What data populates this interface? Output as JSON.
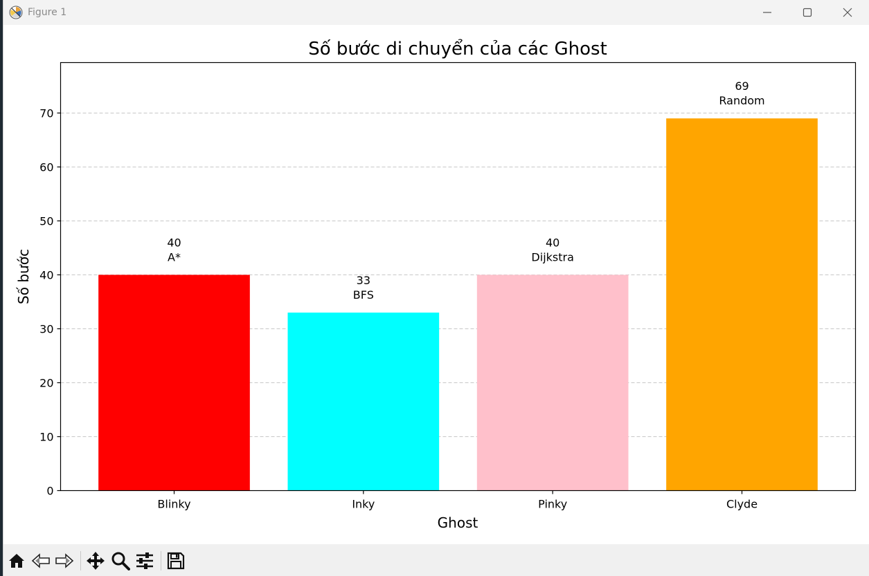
{
  "window": {
    "title": "Figure 1",
    "controls": [
      "minimize-icon",
      "maximize-icon",
      "close-icon"
    ]
  },
  "toolbar": {
    "buttons": [
      "home-icon",
      "back-icon",
      "forward-icon",
      "pan-icon",
      "zoom-icon",
      "configure-subplots-icon",
      "save-icon"
    ]
  },
  "chart_data": {
    "type": "bar",
    "title": "Số bước di chuyển của các Ghost",
    "xlabel": "Ghost",
    "ylabel": "Số bước",
    "categories": [
      "Blinky",
      "Inky",
      "Pinky",
      "Clyde"
    ],
    "values": [
      40,
      33,
      40,
      69
    ],
    "bar_labels": [
      "A*",
      "BFS",
      "Dijkstra",
      "Random"
    ],
    "colors": [
      "#ff0000",
      "#00ffff",
      "#ffc0cb",
      "#ffa500"
    ],
    "ylim": [
      0,
      79.35
    ],
    "yticks": [
      0,
      10,
      20,
      30,
      40,
      50,
      60,
      70
    ],
    "grid": "y-dashed"
  }
}
